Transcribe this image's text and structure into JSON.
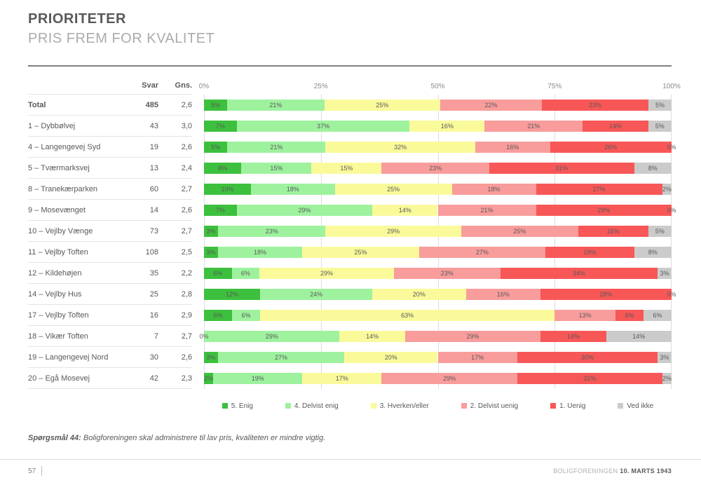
{
  "page": {
    "title": "PRIORITETER",
    "subtitle": "PRIS FREM FOR KVALITET",
    "question_label": "Spørgsmål 44:",
    "question_text": " Boligforeningen skal administrere til lav pris, kvaliteten er mindre vigtig.",
    "page_number": "57",
    "footer_org": "BOLIGFORENINGEN",
    "footer_date": "10. MARTS 1943"
  },
  "table": {
    "col_svar": "Svar",
    "col_gns": "Gns."
  },
  "chart_data": {
    "type": "bar",
    "variant": "horizontal-stacked",
    "title": "PRIORITETER — PRIS FREM FOR KVALITET",
    "xlabel": "",
    "ylabel": "",
    "xlim": [
      0,
      100
    ],
    "x_ticks": [
      "0%",
      "25%",
      "50%",
      "75%",
      "100%"
    ],
    "grid": true,
    "legend_position": "bottom",
    "unit": "percent",
    "series_names": [
      "5. Enig",
      "4. Delvist enig",
      "3. Hverken/eller",
      "2. Delvist uenig",
      "1. Uenig",
      "Ved ikke"
    ],
    "series_colors": [
      "#3dc03d",
      "#9ef29e",
      "#fafa9b",
      "#f99c9c",
      "#f85757",
      "#cbcbcb"
    ],
    "rows": [
      {
        "label": "Total",
        "svar": "485",
        "gns": "2,6",
        "bold": true,
        "values": [
          5,
          21,
          25,
          22,
          23,
          5
        ]
      },
      {
        "label": "1 – Dybbølvej",
        "svar": "43",
        "gns": "3,0",
        "bold": false,
        "values": [
          7,
          37,
          16,
          21,
          14,
          5
        ]
      },
      {
        "label": "4 – Langengevej Syd",
        "svar": "19",
        "gns": "2,6",
        "bold": false,
        "values": [
          5,
          21,
          32,
          16,
          26,
          0
        ]
      },
      {
        "label": "5 – Tværmarksvej",
        "svar": "13",
        "gns": "2,4",
        "bold": false,
        "values": [
          8,
          15,
          15,
          23,
          31,
          8
        ]
      },
      {
        "label": "8 – Tranekærparken",
        "svar": "60",
        "gns": "2,7",
        "bold": false,
        "values": [
          10,
          18,
          25,
          18,
          27,
          2
        ]
      },
      {
        "label": "9 – Mosevænget",
        "svar": "14",
        "gns": "2,6",
        "bold": false,
        "values": [
          7,
          29,
          14,
          21,
          29,
          0
        ]
      },
      {
        "label": "10 – Vejlby Vænge",
        "svar": "73",
        "gns": "2,7",
        "bold": false,
        "values": [
          3,
          23,
          29,
          25,
          15,
          5
        ]
      },
      {
        "label": "11 – Vejlby Toften",
        "svar": "108",
        "gns": "2,5",
        "bold": false,
        "values": [
          3,
          18,
          25,
          27,
          19,
          8
        ]
      },
      {
        "label": "12 – Kildehøjen",
        "svar": "35",
        "gns": "2,2",
        "bold": false,
        "values": [
          6,
          6,
          29,
          23,
          34,
          3
        ]
      },
      {
        "label": "14 – Vejlby Hus",
        "svar": "25",
        "gns": "2,8",
        "bold": false,
        "values": [
          12,
          24,
          20,
          16,
          28,
          0
        ]
      },
      {
        "label": "17 – Vejlby Toften",
        "svar": "16",
        "gns": "2,9",
        "bold": false,
        "values": [
          6,
          6,
          63,
          13,
          6,
          6
        ]
      },
      {
        "label": "18 – Vikær Toften",
        "svar": "7",
        "gns": "2,7",
        "bold": false,
        "values": [
          0,
          29,
          14,
          29,
          14,
          14
        ]
      },
      {
        "label": "19 – Langengevej Nord",
        "svar": "30",
        "gns": "2,6",
        "bold": false,
        "values": [
          3,
          27,
          20,
          17,
          30,
          3
        ]
      },
      {
        "label": "20 – Egå Mosevej",
        "svar": "42",
        "gns": "2,3",
        "bold": false,
        "values": [
          2,
          19,
          17,
          29,
          31,
          2
        ]
      }
    ]
  }
}
